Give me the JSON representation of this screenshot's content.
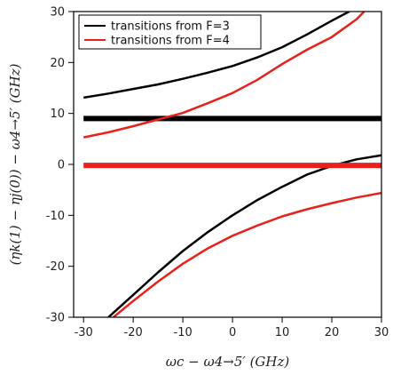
{
  "chart_data": {
    "type": "line",
    "title": "",
    "xlabel": "ωc − ω4→5′ (GHz)",
    "ylabel": "(ηk(1) − ηj(0)) − ω4→5′ (GHz)",
    "xlim": [
      -32,
      30
    ],
    "ylim": [
      -30,
      30
    ],
    "xticks": [
      -30,
      -20,
      -10,
      0,
      10,
      20,
      30
    ],
    "yticks": [
      -30,
      -20,
      -10,
      0,
      10,
      20,
      30
    ],
    "grid": false,
    "legend_position": "top-left",
    "legend": [
      {
        "label": "transitions from F=3",
        "color": "#000000"
      },
      {
        "label": "transitions from F=4",
        "color": "#e8211c"
      }
    ],
    "series": [
      {
        "group": "F=3",
        "color": "#000000",
        "width": 2.5,
        "x": [
          -30,
          -25,
          -20,
          -15,
          -10,
          -5,
          0,
          5,
          10,
          15,
          20,
          23.5
        ],
        "y": [
          13.1,
          13.9,
          14.8,
          15.7,
          16.8,
          18.0,
          19.3,
          21.0,
          23.0,
          25.5,
          28.2,
          30
        ]
      },
      {
        "group": "F=3",
        "color": "#000000",
        "width": 6,
        "x": [
          -30,
          30
        ],
        "y": [
          9,
          9
        ]
      },
      {
        "group": "F=3",
        "color": "#000000",
        "width": 2.5,
        "x": [
          -25,
          -20,
          -15,
          -10,
          -5,
          0,
          5,
          10,
          15,
          20,
          25,
          30
        ],
        "y": [
          -30,
          -25.6,
          -21.2,
          -17.0,
          -13.3,
          -10.0,
          -7.0,
          -4.4,
          -2.0,
          -0.3,
          1.0,
          1.8
        ]
      },
      {
        "group": "F=4",
        "color": "#e8211c",
        "width": 2.5,
        "x": [
          -30,
          -25,
          -20,
          -15,
          -10,
          -5,
          0,
          5,
          10,
          15,
          20,
          25,
          26.5
        ],
        "y": [
          5.3,
          6.3,
          7.5,
          8.8,
          10.1,
          12.0,
          14.0,
          16.6,
          19.7,
          22.5,
          25.0,
          28.5,
          30
        ]
      },
      {
        "group": "F=4",
        "color": "#e8211c",
        "width": 6,
        "x": [
          -30,
          30
        ],
        "y": [
          -0.2,
          -0.2
        ]
      },
      {
        "group": "F=4",
        "color": "#e8211c",
        "width": 2.5,
        "x": [
          -24,
          -20,
          -15,
          -10,
          -5,
          0,
          5,
          10,
          15,
          20,
          25,
          30
        ],
        "y": [
          -30,
          -26.8,
          -23.0,
          -19.5,
          -16.5,
          -14.0,
          -12.0,
          -10.2,
          -8.8,
          -7.6,
          -6.5,
          -5.6
        ]
      }
    ]
  }
}
